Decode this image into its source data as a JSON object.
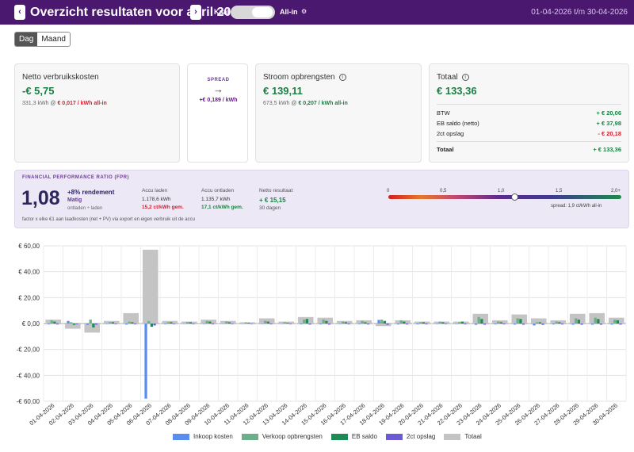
{
  "header": {
    "title": "Overzicht resultaten voor april 2026",
    "prev_label": "‹",
    "next_label": "›",
    "toggle_left": "Kaal",
    "toggle_right": "All-in",
    "toggle_state": "All-in",
    "gear_icon": "⚙",
    "date_range": "01-04-2026 t/m 30-04-2026"
  },
  "view_tabs": {
    "day": "Dag",
    "month": "Maand",
    "active": "Dag"
  },
  "cards": {
    "netto": {
      "title": "Netto verbruikskosten",
      "value": "-€ 5,75",
      "sub_prefix": "331,3 kWh @ ",
      "sub_rate": "€ 0,017 / kWh all-in"
    },
    "spread": {
      "label": "SPREAD",
      "arrow": "→",
      "value": "+€ 0,189 / kWh"
    },
    "stroom": {
      "title": "Stroom opbrengsten",
      "info_icon": "i",
      "value": "€ 139,11",
      "sub_prefix": "673,5 kWh @ ",
      "sub_rate": "€ 0,207 / kWh all-in"
    },
    "totaal": {
      "title": "Totaal",
      "info_icon": "i",
      "value": "€ 133,36",
      "rows": [
        {
          "label": "BTW",
          "value": "+ € 20,06"
        },
        {
          "label": "EB saldo (netto)",
          "value": "+ € 37,98"
        },
        {
          "label": "2ct opslag",
          "value": "- € 20,18"
        }
      ],
      "total_label": "Totaal",
      "total_value": "+ € 133,36"
    }
  },
  "fpr": {
    "title": "FINANCIAL PERFORMANCE RATIO (FPR)",
    "value": "1,08",
    "rendement": "+8% rendement",
    "rating": "Matig",
    "formula": "ontladen ÷ laden",
    "footnote": "factor x elke €1 aan laadkosten (net + PV) via export en eigen verbruik uit de accu",
    "accu_laden": {
      "label": "Accu laden",
      "kwh": "1.178,6 kWh",
      "rate": "15,2 ct/kWh gem."
    },
    "accu_ontladen": {
      "label": "Accu ontladen",
      "kwh": "1.135,7 kWh",
      "rate": "17,1 ct/kWh gem."
    },
    "netto": {
      "label": "Netto resultaat",
      "value": "+ € 15,15",
      "days": "30 dagen"
    },
    "scale_labels": [
      "0",
      "0,5",
      "1,0",
      "1,5",
      "2,0+"
    ],
    "scale_value": 1.08,
    "scale_footer": "spread: 1,9 ct/kWh all-in"
  },
  "chart_data": {
    "type": "bar",
    "categories": [
      "01-04-2026",
      "02-04-2026",
      "03-04-2026",
      "04-04-2026",
      "05-04-2026",
      "06-04-2026",
      "07-04-2026",
      "08-04-2026",
      "09-04-2026",
      "10-04-2026",
      "11-04-2026",
      "12-04-2026",
      "13-04-2026",
      "14-04-2026",
      "15-04-2026",
      "16-04-2026",
      "17-04-2026",
      "18-04-2026",
      "19-04-2026",
      "20-04-2026",
      "21-04-2026",
      "22-04-2026",
      "23-04-2026",
      "24-04-2026",
      "25-04-2026",
      "26-04-2026",
      "27-04-2026",
      "28-04-2026",
      "29-04-2026",
      "30-04-2026"
    ],
    "ylim": [
      -60,
      60
    ],
    "y_ticks": [
      60,
      40,
      20,
      0,
      -20,
      -40,
      -60
    ],
    "y_tick_labels": [
      "€ 60,00",
      "€ 40,00",
      "€ 20,00",
      "€ 0,00",
      "-€ 20,00",
      "-€ 40,00",
      "-€ 60,00"
    ],
    "grid": true,
    "legend_position": "bottom",
    "colors": [
      "#5b8def",
      "#6daf8a",
      "#1e8a55",
      "#6b5ad6",
      "#c4c4c4"
    ],
    "series": [
      {
        "name": "Inkoop kosten",
        "values": [
          -0.6,
          2.0,
          -1.0,
          -0.4,
          -0.8,
          -58.0,
          -0.5,
          -0.3,
          -0.4,
          -0.3,
          -0.3,
          -0.4,
          -0.3,
          -0.6,
          -0.6,
          -0.4,
          -0.5,
          2.8,
          -0.7,
          -0.6,
          -0.4,
          -0.4,
          -1.0,
          -0.6,
          -0.8,
          -1.5,
          -0.7,
          -0.9,
          -0.9,
          -0.8
        ]
      },
      {
        "name": "Verkoop opbrengsten",
        "values": [
          2.5,
          1.0,
          3.0,
          1.0,
          1.5,
          2.0,
          1.0,
          1.2,
          2.0,
          1.5,
          0.8,
          2.0,
          1.0,
          3.0,
          3.0,
          1.5,
          2.0,
          3.0,
          2.5,
          1.0,
          1.5,
          1.0,
          5.0,
          1.5,
          4.0,
          1.0,
          1.5,
          4.0,
          4.5,
          3.0
        ]
      },
      {
        "name": "EB saldo",
        "values": [
          1.5,
          -1.0,
          -3.0,
          1.0,
          1.0,
          -2.5,
          1.0,
          1.0,
          1.5,
          1.0,
          0.5,
          1.5,
          0.5,
          3.5,
          2.0,
          1.0,
          1.0,
          2.0,
          1.5,
          1.0,
          1.0,
          1.5,
          3.5,
          1.0,
          3.5,
          1.0,
          1.0,
          3.0,
          3.5,
          2.5
        ]
      },
      {
        "name": "2ct opslag",
        "values": [
          -0.7,
          -0.5,
          -0.8,
          -0.5,
          -0.6,
          -1.5,
          -0.5,
          -0.5,
          -0.6,
          -0.5,
          -0.4,
          -0.6,
          -0.5,
          -0.8,
          -0.8,
          -0.6,
          -0.7,
          -0.9,
          -0.7,
          -0.6,
          -0.5,
          -0.6,
          -0.9,
          -0.6,
          -0.9,
          -1.0,
          -0.7,
          -0.9,
          -0.9,
          -0.8
        ]
      },
      {
        "name": "Totaal",
        "values": [
          3.0,
          -4.0,
          -7.0,
          2.0,
          8.0,
          57.0,
          2.0,
          1.5,
          3.0,
          2.0,
          1.0,
          4.0,
          1.5,
          5.0,
          4.5,
          2.0,
          2.5,
          -2.0,
          2.5,
          1.5,
          1.5,
          1.5,
          7.5,
          2.5,
          7.0,
          4.0,
          2.5,
          7.5,
          8.0,
          4.5
        ]
      }
    ]
  }
}
